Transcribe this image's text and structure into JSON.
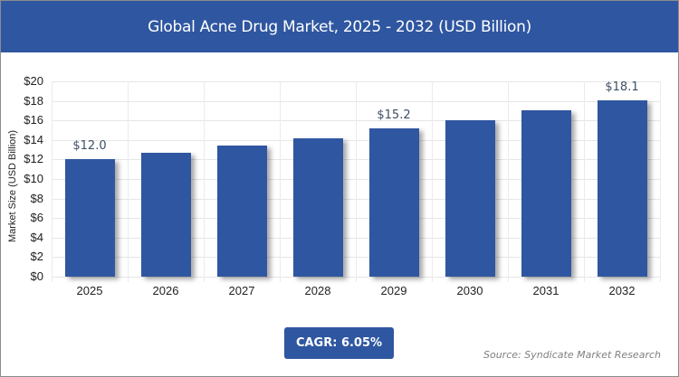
{
  "title": "Global Acne Drug Market, 2025 - 2032 (USD Billion)",
  "cagr_label": "CAGR: 6.05%",
  "source": "Source: Syndicate Market Research",
  "colors": {
    "bar": "#2f56a0",
    "title_bg": "#2f56a0"
  },
  "chart_data": {
    "type": "bar",
    "title": "Global Acne Drug Market, 2025 - 2032 (USD Billion)",
    "xlabel": "",
    "ylabel": "Market Size (USD Billion)",
    "categories": [
      "2025",
      "2026",
      "2027",
      "2028",
      "2029",
      "2030",
      "2031",
      "2032"
    ],
    "values": [
      12.0,
      12.7,
      13.4,
      14.2,
      15.2,
      16.0,
      17.0,
      18.1
    ],
    "data_labels": {
      "2025": "$12.0",
      "2029": "$15.2",
      "2032": "$18.1"
    },
    "ylim": [
      0,
      20
    ],
    "yticks": [
      "$0",
      "$2",
      "$4",
      "$6",
      "$8",
      "$10",
      "$12",
      "$14",
      "$16",
      "$18",
      "$20"
    ],
    "grid": true,
    "legend": "none"
  }
}
